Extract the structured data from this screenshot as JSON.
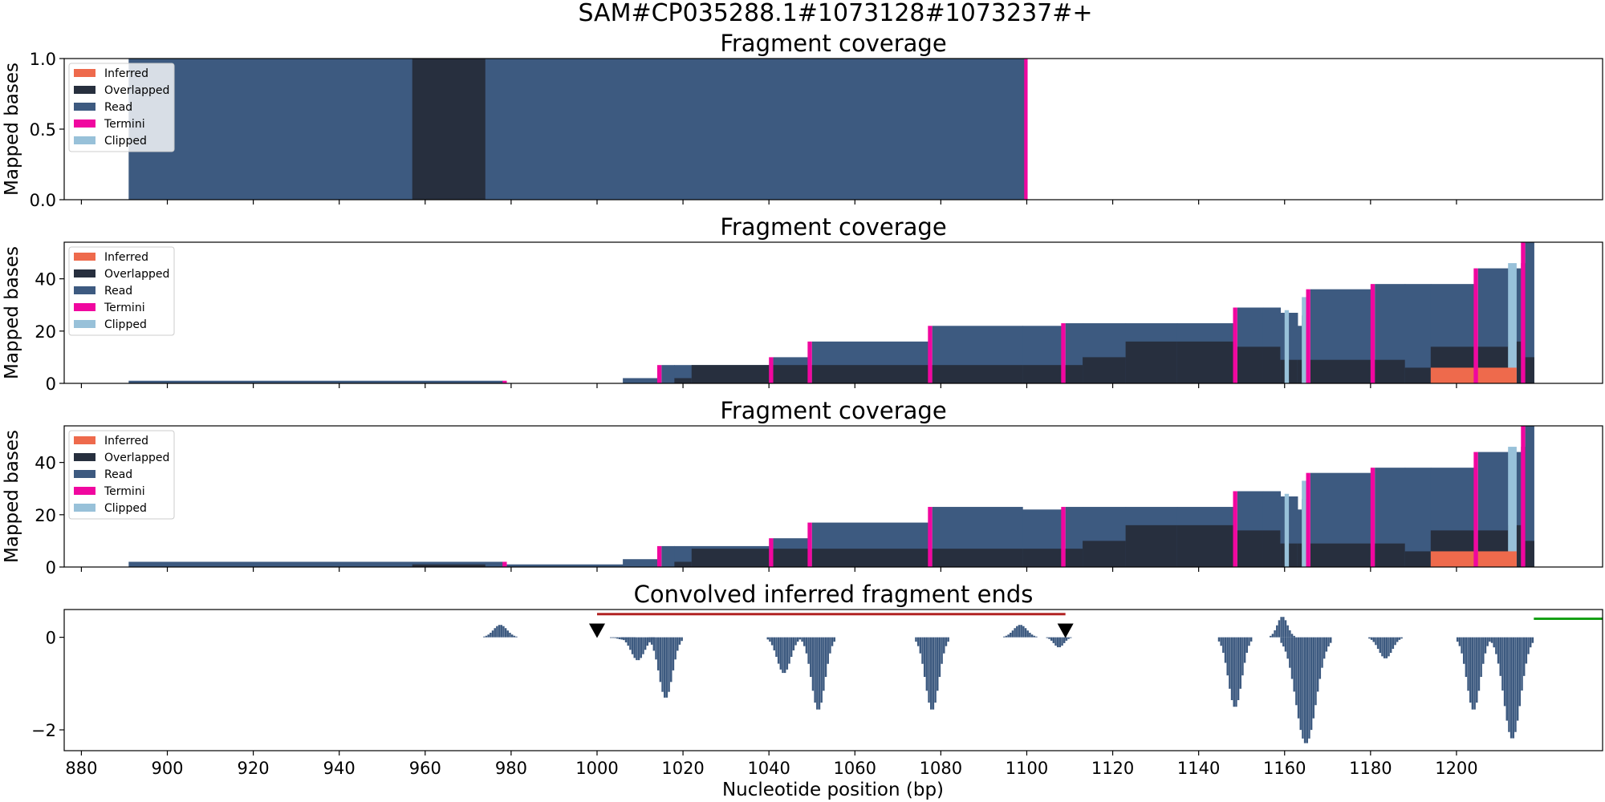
{
  "figure": {
    "suptitle": "SAM#CP035288.1#1073128#1073237#+",
    "xlabel": "Nucleotide position (bp)"
  },
  "colors": {
    "inferred": "#ee6a4c",
    "overlapped": "#272f3e",
    "read": "#3d5a80",
    "termini": "#f0079f",
    "clipped": "#98c1d9",
    "hist": "#3d5a80",
    "target_line": "#b22222",
    "green_line": "#16a016"
  },
  "chart_data": [
    {
      "type": "area",
      "title": "Fragment coverage",
      "ylabel": "Mapped bases",
      "xlim": [
        876,
        1234
      ],
      "ylim": [
        0,
        1.0
      ],
      "yticks": [
        0.0,
        0.5,
        1.0
      ],
      "yticklabels": [
        "0.0",
        "0.5",
        "1.0"
      ],
      "legend": {
        "placement": "top-left",
        "entries": [
          "Inferred",
          "Overlapped",
          "Read",
          "Termini",
          "Clipped"
        ]
      },
      "segments": [
        {
          "x0": 891,
          "x1": 957,
          "read": 1,
          "overlapped": 0
        },
        {
          "x0": 957,
          "x1": 974,
          "read": 0,
          "overlapped": 1
        },
        {
          "x0": 974,
          "x1": 1099.4,
          "read": 1,
          "overlapped": 0
        }
      ],
      "termini": [
        {
          "x0": 1099.4,
          "x1": 1100.2,
          "y": 1
        }
      ],
      "clipped": [],
      "inferred": []
    },
    {
      "type": "area",
      "title": "Fragment coverage",
      "ylabel": "Mapped bases",
      "xlim": [
        876,
        1234
      ],
      "ylim": [
        0,
        54
      ],
      "yticks": [
        0,
        20,
        40
      ],
      "yticklabels": [
        "0",
        "20",
        "40"
      ],
      "legend": {
        "placement": "top-left",
        "entries": [
          "Inferred",
          "Overlapped",
          "Read",
          "Termini",
          "Clipped"
        ]
      },
      "segments": [
        {
          "x0": 891,
          "x1": 978,
          "read": 1,
          "overlapped": 0
        },
        {
          "x0": 1006,
          "x1": 1014,
          "read": 2,
          "overlapped": 0
        },
        {
          "x0": 1015,
          "x1": 1018,
          "read": 7,
          "overlapped": 0
        },
        {
          "x0": 1018,
          "x1": 1022,
          "read": 7,
          "overlapped": 2
        },
        {
          "x0": 1022,
          "x1": 1040,
          "read": 7,
          "overlapped": 7
        },
        {
          "x0": 1041,
          "x1": 1049,
          "read": 10,
          "overlapped": 7
        },
        {
          "x0": 1050,
          "x1": 1077,
          "read": 16,
          "overlapped": 7
        },
        {
          "x0": 1078,
          "x1": 1099,
          "read": 22,
          "overlapped": 7
        },
        {
          "x0": 1099,
          "x1": 1108,
          "read": 22,
          "overlapped": 7
        },
        {
          "x0": 1109,
          "x1": 1113,
          "read": 23,
          "overlapped": 7
        },
        {
          "x0": 1113,
          "x1": 1123,
          "read": 23,
          "overlapped": 10
        },
        {
          "x0": 1123,
          "x1": 1135,
          "read": 23,
          "overlapped": 16
        },
        {
          "x0": 1135,
          "x1": 1148,
          "read": 23,
          "overlapped": 16
        },
        {
          "x0": 1149,
          "x1": 1155,
          "read": 29,
          "overlapped": 14
        },
        {
          "x0": 1155,
          "x1": 1159,
          "read": 29,
          "overlapped": 14
        },
        {
          "x0": 1159,
          "x1": 1163,
          "read": 27,
          "overlapped": 9
        },
        {
          "x0": 1163,
          "x1": 1164,
          "read": 22,
          "overlapped": 9
        },
        {
          "x0": 1164,
          "x1": 1165,
          "read": 26,
          "overlapped": 9
        },
        {
          "x0": 1166,
          "x1": 1180,
          "read": 36,
          "overlapped": 9
        },
        {
          "x0": 1181,
          "x1": 1188,
          "read": 38,
          "overlapped": 9
        },
        {
          "x0": 1188,
          "x1": 1194,
          "read": 38,
          "overlapped": 6
        },
        {
          "x0": 1194,
          "x1": 1204,
          "read": 38,
          "overlapped": 14
        },
        {
          "x0": 1205,
          "x1": 1212,
          "read": 44,
          "overlapped": 14
        },
        {
          "x0": 1212,
          "x1": 1215,
          "read": 44,
          "overlapped": 16
        },
        {
          "x0": 1215,
          "x1": 1216,
          "read": 46,
          "overlapped": 10
        },
        {
          "x0": 1216,
          "x1": 1218,
          "read": 54,
          "overlapped": 10
        }
      ],
      "termini": [
        {
          "x0": 978,
          "x1": 979,
          "y": 1
        },
        {
          "x0": 1014,
          "x1": 1015,
          "y": 7
        },
        {
          "x0": 1040,
          "x1": 1041,
          "y": 10
        },
        {
          "x0": 1049,
          "x1": 1050,
          "y": 16
        },
        {
          "x0": 1077,
          "x1": 1078,
          "y": 22
        },
        {
          "x0": 1108,
          "x1": 1109,
          "y": 23
        },
        {
          "x0": 1148,
          "x1": 1149,
          "y": 29
        },
        {
          "x0": 1165,
          "x1": 1166,
          "y": 36
        },
        {
          "x0": 1180,
          "x1": 1181,
          "y": 38
        },
        {
          "x0": 1204,
          "x1": 1205,
          "y": 44
        },
        {
          "x0": 1215,
          "x1": 1216,
          "y": 54
        }
      ],
      "clipped": [
        {
          "x0": 1160,
          "x1": 1161,
          "y": 28
        },
        {
          "x0": 1164,
          "x1": 1165,
          "y": 33
        },
        {
          "x0": 1212,
          "x1": 1214,
          "y": 46
        }
      ],
      "inferred": [
        {
          "x0": 1194,
          "x1": 1214,
          "y": 6
        }
      ]
    },
    {
      "type": "area",
      "title": "Fragment coverage",
      "ylabel": "Mapped bases",
      "xlim": [
        876,
        1234
      ],
      "ylim": [
        0,
        54
      ],
      "yticks": [
        0,
        20,
        40
      ],
      "yticklabels": [
        "0",
        "20",
        "40"
      ],
      "legend": {
        "placement": "top-left",
        "entries": [
          "Inferred",
          "Overlapped",
          "Read",
          "Termini",
          "Clipped"
        ]
      },
      "segments": [
        {
          "x0": 891,
          "x1": 957,
          "read": 2,
          "overlapped": 0
        },
        {
          "x0": 957,
          "x1": 974,
          "read": 2,
          "overlapped": 1
        },
        {
          "x0": 974,
          "x1": 978,
          "read": 2,
          "overlapped": 0
        },
        {
          "x0": 979,
          "x1": 1006,
          "read": 1,
          "overlapped": 0
        },
        {
          "x0": 1006,
          "x1": 1014,
          "read": 3,
          "overlapped": 0
        },
        {
          "x0": 1015,
          "x1": 1018,
          "read": 8,
          "overlapped": 0
        },
        {
          "x0": 1018,
          "x1": 1022,
          "read": 8,
          "overlapped": 2
        },
        {
          "x0": 1022,
          "x1": 1040,
          "read": 8,
          "overlapped": 7
        },
        {
          "x0": 1041,
          "x1": 1049,
          "read": 11,
          "overlapped": 7
        },
        {
          "x0": 1050,
          "x1": 1077,
          "read": 17,
          "overlapped": 7
        },
        {
          "x0": 1078,
          "x1": 1099,
          "read": 23,
          "overlapped": 7
        },
        {
          "x0": 1099,
          "x1": 1108,
          "read": 22,
          "overlapped": 7
        },
        {
          "x0": 1109,
          "x1": 1113,
          "read": 23,
          "overlapped": 7
        },
        {
          "x0": 1113,
          "x1": 1123,
          "read": 23,
          "overlapped": 10
        },
        {
          "x0": 1123,
          "x1": 1135,
          "read": 23,
          "overlapped": 16
        },
        {
          "x0": 1135,
          "x1": 1148,
          "read": 23,
          "overlapped": 16
        },
        {
          "x0": 1149,
          "x1": 1155,
          "read": 29,
          "overlapped": 14
        },
        {
          "x0": 1155,
          "x1": 1159,
          "read": 29,
          "overlapped": 14
        },
        {
          "x0": 1159,
          "x1": 1163,
          "read": 27,
          "overlapped": 9
        },
        {
          "x0": 1163,
          "x1": 1164,
          "read": 22,
          "overlapped": 9
        },
        {
          "x0": 1164,
          "x1": 1165,
          "read": 26,
          "overlapped": 9
        },
        {
          "x0": 1166,
          "x1": 1180,
          "read": 36,
          "overlapped": 9
        },
        {
          "x0": 1181,
          "x1": 1188,
          "read": 38,
          "overlapped": 9
        },
        {
          "x0": 1188,
          "x1": 1194,
          "read": 38,
          "overlapped": 6
        },
        {
          "x0": 1194,
          "x1": 1204,
          "read": 38,
          "overlapped": 14
        },
        {
          "x0": 1205,
          "x1": 1212,
          "read": 44,
          "overlapped": 14
        },
        {
          "x0": 1212,
          "x1": 1215,
          "read": 44,
          "overlapped": 16
        },
        {
          "x0": 1215,
          "x1": 1216,
          "read": 46,
          "overlapped": 10
        },
        {
          "x0": 1216,
          "x1": 1218,
          "read": 54,
          "overlapped": 10
        }
      ],
      "termini": [
        {
          "x0": 978,
          "x1": 979,
          "y": 2
        },
        {
          "x0": 1014,
          "x1": 1015,
          "y": 8
        },
        {
          "x0": 1040,
          "x1": 1041,
          "y": 11
        },
        {
          "x0": 1049,
          "x1": 1050,
          "y": 17
        },
        {
          "x0": 1077,
          "x1": 1078,
          "y": 23
        },
        {
          "x0": 1108,
          "x1": 1109,
          "y": 23
        },
        {
          "x0": 1148,
          "x1": 1149,
          "y": 29
        },
        {
          "x0": 1165,
          "x1": 1166,
          "y": 36
        },
        {
          "x0": 1180,
          "x1": 1181,
          "y": 38
        },
        {
          "x0": 1204,
          "x1": 1205,
          "y": 44
        },
        {
          "x0": 1215,
          "x1": 1216,
          "y": 54
        }
      ],
      "clipped": [
        {
          "x0": 1160,
          "x1": 1161,
          "y": 28
        },
        {
          "x0": 1164,
          "x1": 1165,
          "y": 33
        },
        {
          "x0": 1212,
          "x1": 1214,
          "y": 46
        }
      ],
      "inferred": [
        {
          "x0": 1194,
          "x1": 1214,
          "y": 6
        }
      ]
    },
    {
      "type": "bar",
      "title": "Convolved inferred fragment ends",
      "xlim": [
        876,
        1234
      ],
      "ylim": [
        -2.45,
        0.6
      ],
      "yticks": [
        0,
        -2
      ],
      "yticklabels": [
        "0",
        "−2"
      ],
      "xticks": [
        880,
        900,
        920,
        940,
        960,
        980,
        1000,
        1020,
        1040,
        1060,
        1080,
        1100,
        1120,
        1140,
        1160,
        1180,
        1200
      ],
      "xticklabels": [
        "880",
        "900",
        "920",
        "940",
        "960",
        "980",
        "1000",
        "1020",
        "1040",
        "1060",
        "1080",
        "1100",
        "1120",
        "1140",
        "1160",
        "1180",
        "1200"
      ],
      "peaks": [
        {
          "center": 977.5,
          "amp": 0.27,
          "half_width": 4
        },
        {
          "center": 1006,
          "amp": -0.05,
          "half_width": 3
        },
        {
          "center": 1009.5,
          "amp": -0.5,
          "half_width": 4
        },
        {
          "center": 1016,
          "amp": -1.32,
          "half_width": 4
        },
        {
          "center": 1043.5,
          "amp": -0.78,
          "half_width": 4
        },
        {
          "center": 1051.5,
          "amp": -1.58,
          "half_width": 4
        },
        {
          "center": 1078,
          "amp": -1.58,
          "half_width": 4
        },
        {
          "center": 1098.5,
          "amp": 0.27,
          "half_width": 4
        },
        {
          "center": 1107.5,
          "amp": -0.22,
          "half_width": 3
        },
        {
          "center": 1148.5,
          "amp": -1.52,
          "half_width": 4
        },
        {
          "center": 1159.5,
          "amp": 0.45,
          "half_width": 3
        },
        {
          "center": 1165,
          "amp": -2.3,
          "half_width": 6
        },
        {
          "center": 1183.5,
          "amp": -0.46,
          "half_width": 4
        },
        {
          "center": 1204,
          "amp": -1.58,
          "half_width": 4
        },
        {
          "center": 1213,
          "amp": -2.2,
          "half_width": 5
        }
      ],
      "markers": [
        {
          "type": "triangle-down",
          "x": 1000,
          "y": 0.14
        },
        {
          "type": "triangle-down",
          "x": 1109,
          "y": 0.14
        }
      ],
      "target_range": {
        "x0": 1000,
        "x1": 1109,
        "y": 0.5
      },
      "green_range": {
        "x0": 1218,
        "x1": 1234,
        "y": 0.4
      }
    }
  ]
}
